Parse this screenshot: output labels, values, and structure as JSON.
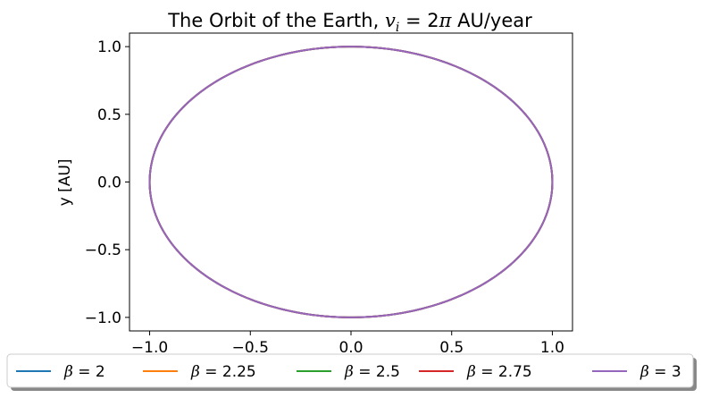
{
  "chart_data": {
    "type": "line",
    "title": "The Orbit of the Earth, v_i = 2π AU/year",
    "title_parts": {
      "prefix": "The Orbit of the Earth, ",
      "var": "v",
      "sub": "i",
      "eq": " = 2",
      "pi": "π",
      "suffix": " AU/year"
    },
    "xlabel": "",
    "ylabel": "y [AU]",
    "xlim": [
      -1.1,
      1.1
    ],
    "ylim": [
      -1.1,
      1.1
    ],
    "xticks": [
      -1.0,
      -0.5,
      0.0,
      0.5,
      1.0
    ],
    "xtick_labels": [
      "−1.0",
      "−0.5",
      "0.0",
      "0.5",
      "1.0"
    ],
    "yticks": [
      -1.0,
      -0.5,
      0.0,
      0.5,
      1.0
    ],
    "ytick_labels": [
      "−1.0",
      "−0.5",
      "0.0",
      "0.5",
      "1.0"
    ],
    "grid": false,
    "legend_position": "bottom-center, below axes",
    "legend_symbol": "β",
    "series": [
      {
        "name": "β = 2",
        "beta": "2",
        "color": "#1f77b4",
        "shape": "circle",
        "radius": 1.0,
        "center": [
          0,
          0
        ]
      },
      {
        "name": "β = 2.25",
        "beta": "2.25",
        "color": "#ff7f0e",
        "shape": "circle",
        "radius": 1.0,
        "center": [
          0,
          0
        ]
      },
      {
        "name": "β = 2.5",
        "beta": "2.5",
        "color": "#2ca02c",
        "shape": "circle",
        "radius": 1.0,
        "center": [
          0,
          0
        ]
      },
      {
        "name": "β = 2.75",
        "beta": "2.75",
        "color": "#d62728",
        "shape": "circle",
        "radius": 1.0,
        "center": [
          0,
          0
        ]
      },
      {
        "name": "β = 3",
        "beta": "3",
        "color": "#9467bd",
        "shape": "circle",
        "radius": 1.0,
        "center": [
          0,
          0
        ]
      }
    ]
  }
}
